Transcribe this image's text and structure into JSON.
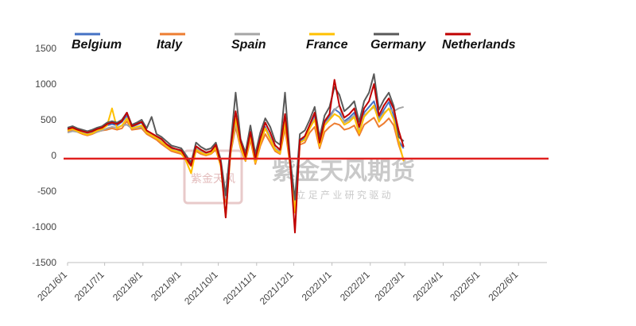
{
  "chart_data": {
    "type": "line",
    "title": "",
    "xlabel": "",
    "ylabel": "",
    "ylim": [
      -1500,
      1500
    ],
    "y_ticks": [
      1500,
      1000,
      500,
      0,
      -500,
      -1000,
      -1500
    ],
    "x_ticks": [
      "2021/6/1",
      "2021/7/1",
      "2021/8/1",
      "2021/9/1",
      "2021/10/1",
      "2021/11/1",
      "2021/12/1",
      "2022/1/1",
      "2022/2/1",
      "2022/3/1",
      "2022/4/1",
      "2022/5/1",
      "2022/6/1"
    ],
    "legend_position": "top",
    "zero_line_color": "#e0201f",
    "grid": false,
    "watermark": {
      "title": "紫金天风期货",
      "subtitle": "立 足 产 业  研 究 驱 动",
      "seal": "紫金天风"
    },
    "x_start": "2021-06-01",
    "x_end": "2022-06-24",
    "x_step_days": 4,
    "series": [
      {
        "name": "Belgium",
        "color": "#4472c4",
        "values": [
          360,
          380,
          350,
          330,
          300,
          320,
          360,
          380,
          420,
          440,
          420,
          470,
          560,
          400,
          430,
          460,
          330,
          300,
          260,
          220,
          150,
          100,
          80,
          60,
          -50,
          -150,
          120,
          60,
          20,
          40,
          130,
          -120,
          -650,
          80,
          480,
          150,
          -50,
          300,
          -80,
          200,
          400,
          250,
          100,
          50,
          500,
          -80,
          -750,
          200,
          250,
          400,
          550,
          150,
          450,
          550,
          650,
          600,
          480,
          530,
          600,
          350,
          600,
          680,
          760,
          520,
          640,
          750,
          560,
          200,
          100
        ]
      },
      {
        "name": "Italy",
        "color": "#ed7d31",
        "values": [
          340,
          360,
          330,
          300,
          280,
          300,
          330,
          350,
          360,
          380,
          360,
          380,
          480,
          360,
          370,
          380,
          300,
          260,
          220,
          160,
          110,
          60,
          40,
          20,
          -60,
          -150,
          60,
          20,
          0,
          20,
          80,
          -150,
          -650,
          30,
          400,
          100,
          -80,
          220,
          -120,
          130,
          300,
          180,
          60,
          20,
          380,
          -120,
          -780,
          150,
          180,
          320,
          400,
          100,
          330,
          400,
          450,
          430,
          360,
          380,
          420,
          280,
          430,
          480,
          530,
          400,
          450,
          520,
          420,
          150,
          -60
        ]
      },
      {
        "name": "Spain",
        "color": "#a5a5a5",
        "values": [
          320,
          340,
          330,
          320,
          300,
          310,
          330,
          350,
          380,
          400,
          390,
          420,
          430,
          380,
          390,
          400,
          320,
          300,
          260,
          220,
          160,
          120,
          80,
          80,
          -20,
          -120,
          100,
          60,
          30,
          40,
          120,
          -100,
          -600,
          60,
          450,
          140,
          -40,
          280,
          -60,
          180,
          380,
          240,
          100,
          60,
          480,
          -60,
          -680,
          180,
          220,
          380,
          520,
          150,
          430,
          520,
          640,
          700,
          460,
          500,
          560,
          340,
          560,
          620,
          680,
          500,
          600,
          650,
          620,
          660,
          680
        ]
      },
      {
        "name": "France",
        "color": "#ffc000",
        "values": [
          350,
          370,
          340,
          310,
          290,
          310,
          350,
          370,
          420,
          660,
          380,
          420,
          520,
          380,
          400,
          420,
          320,
          280,
          240,
          190,
          130,
          80,
          60,
          40,
          -80,
          -250,
          80,
          40,
          10,
          30,
          110,
          -150,
          -860,
          50,
          520,
          130,
          -70,
          280,
          -100,
          170,
          380,
          230,
          80,
          30,
          470,
          -100,
          -800,
          180,
          220,
          380,
          500,
          130,
          420,
          500,
          580,
          540,
          430,
          470,
          540,
          310,
          540,
          620,
          700,
          470,
          580,
          660,
          500,
          200,
          -80
        ]
      },
      {
        "name": "Germany",
        "color": "#595959",
        "values": [
          390,
          410,
          380,
          360,
          340,
          360,
          390,
          410,
          460,
          480,
          460,
          500,
          600,
          430,
          460,
          500,
          380,
          540,
          300,
          260,
          200,
          140,
          120,
          100,
          0,
          -100,
          180,
          120,
          80,
          100,
          180,
          -60,
          -560,
          150,
          880,
          230,
          40,
          420,
          20,
          320,
          520,
          400,
          200,
          150,
          880,
          -20,
          -620,
          300,
          350,
          500,
          680,
          250,
          560,
          680,
          960,
          850,
          620,
          680,
          760,
          470,
          760,
          880,
          1140,
          640,
          780,
          880,
          690,
          260,
          200
        ]
      },
      {
        "name": "Netherlands",
        "color": "#c00000",
        "values": [
          370,
          390,
          360,
          340,
          320,
          340,
          370,
          390,
          440,
          460,
          440,
          480,
          600,
          410,
          440,
          470,
          350,
          310,
          270,
          230,
          160,
          110,
          90,
          70,
          -40,
          -140,
          130,
          80,
          40,
          60,
          150,
          -110,
          -870,
          100,
          620,
          200,
          -20,
          330,
          -50,
          240,
          460,
          320,
          140,
          80,
          580,
          -70,
          -1080,
          220,
          270,
          430,
          600,
          180,
          480,
          580,
          1060,
          700,
          530,
          580,
          660,
          400,
          660,
          760,
          1000,
          560,
          700,
          800,
          650,
          350,
          120
        ]
      }
    ]
  }
}
